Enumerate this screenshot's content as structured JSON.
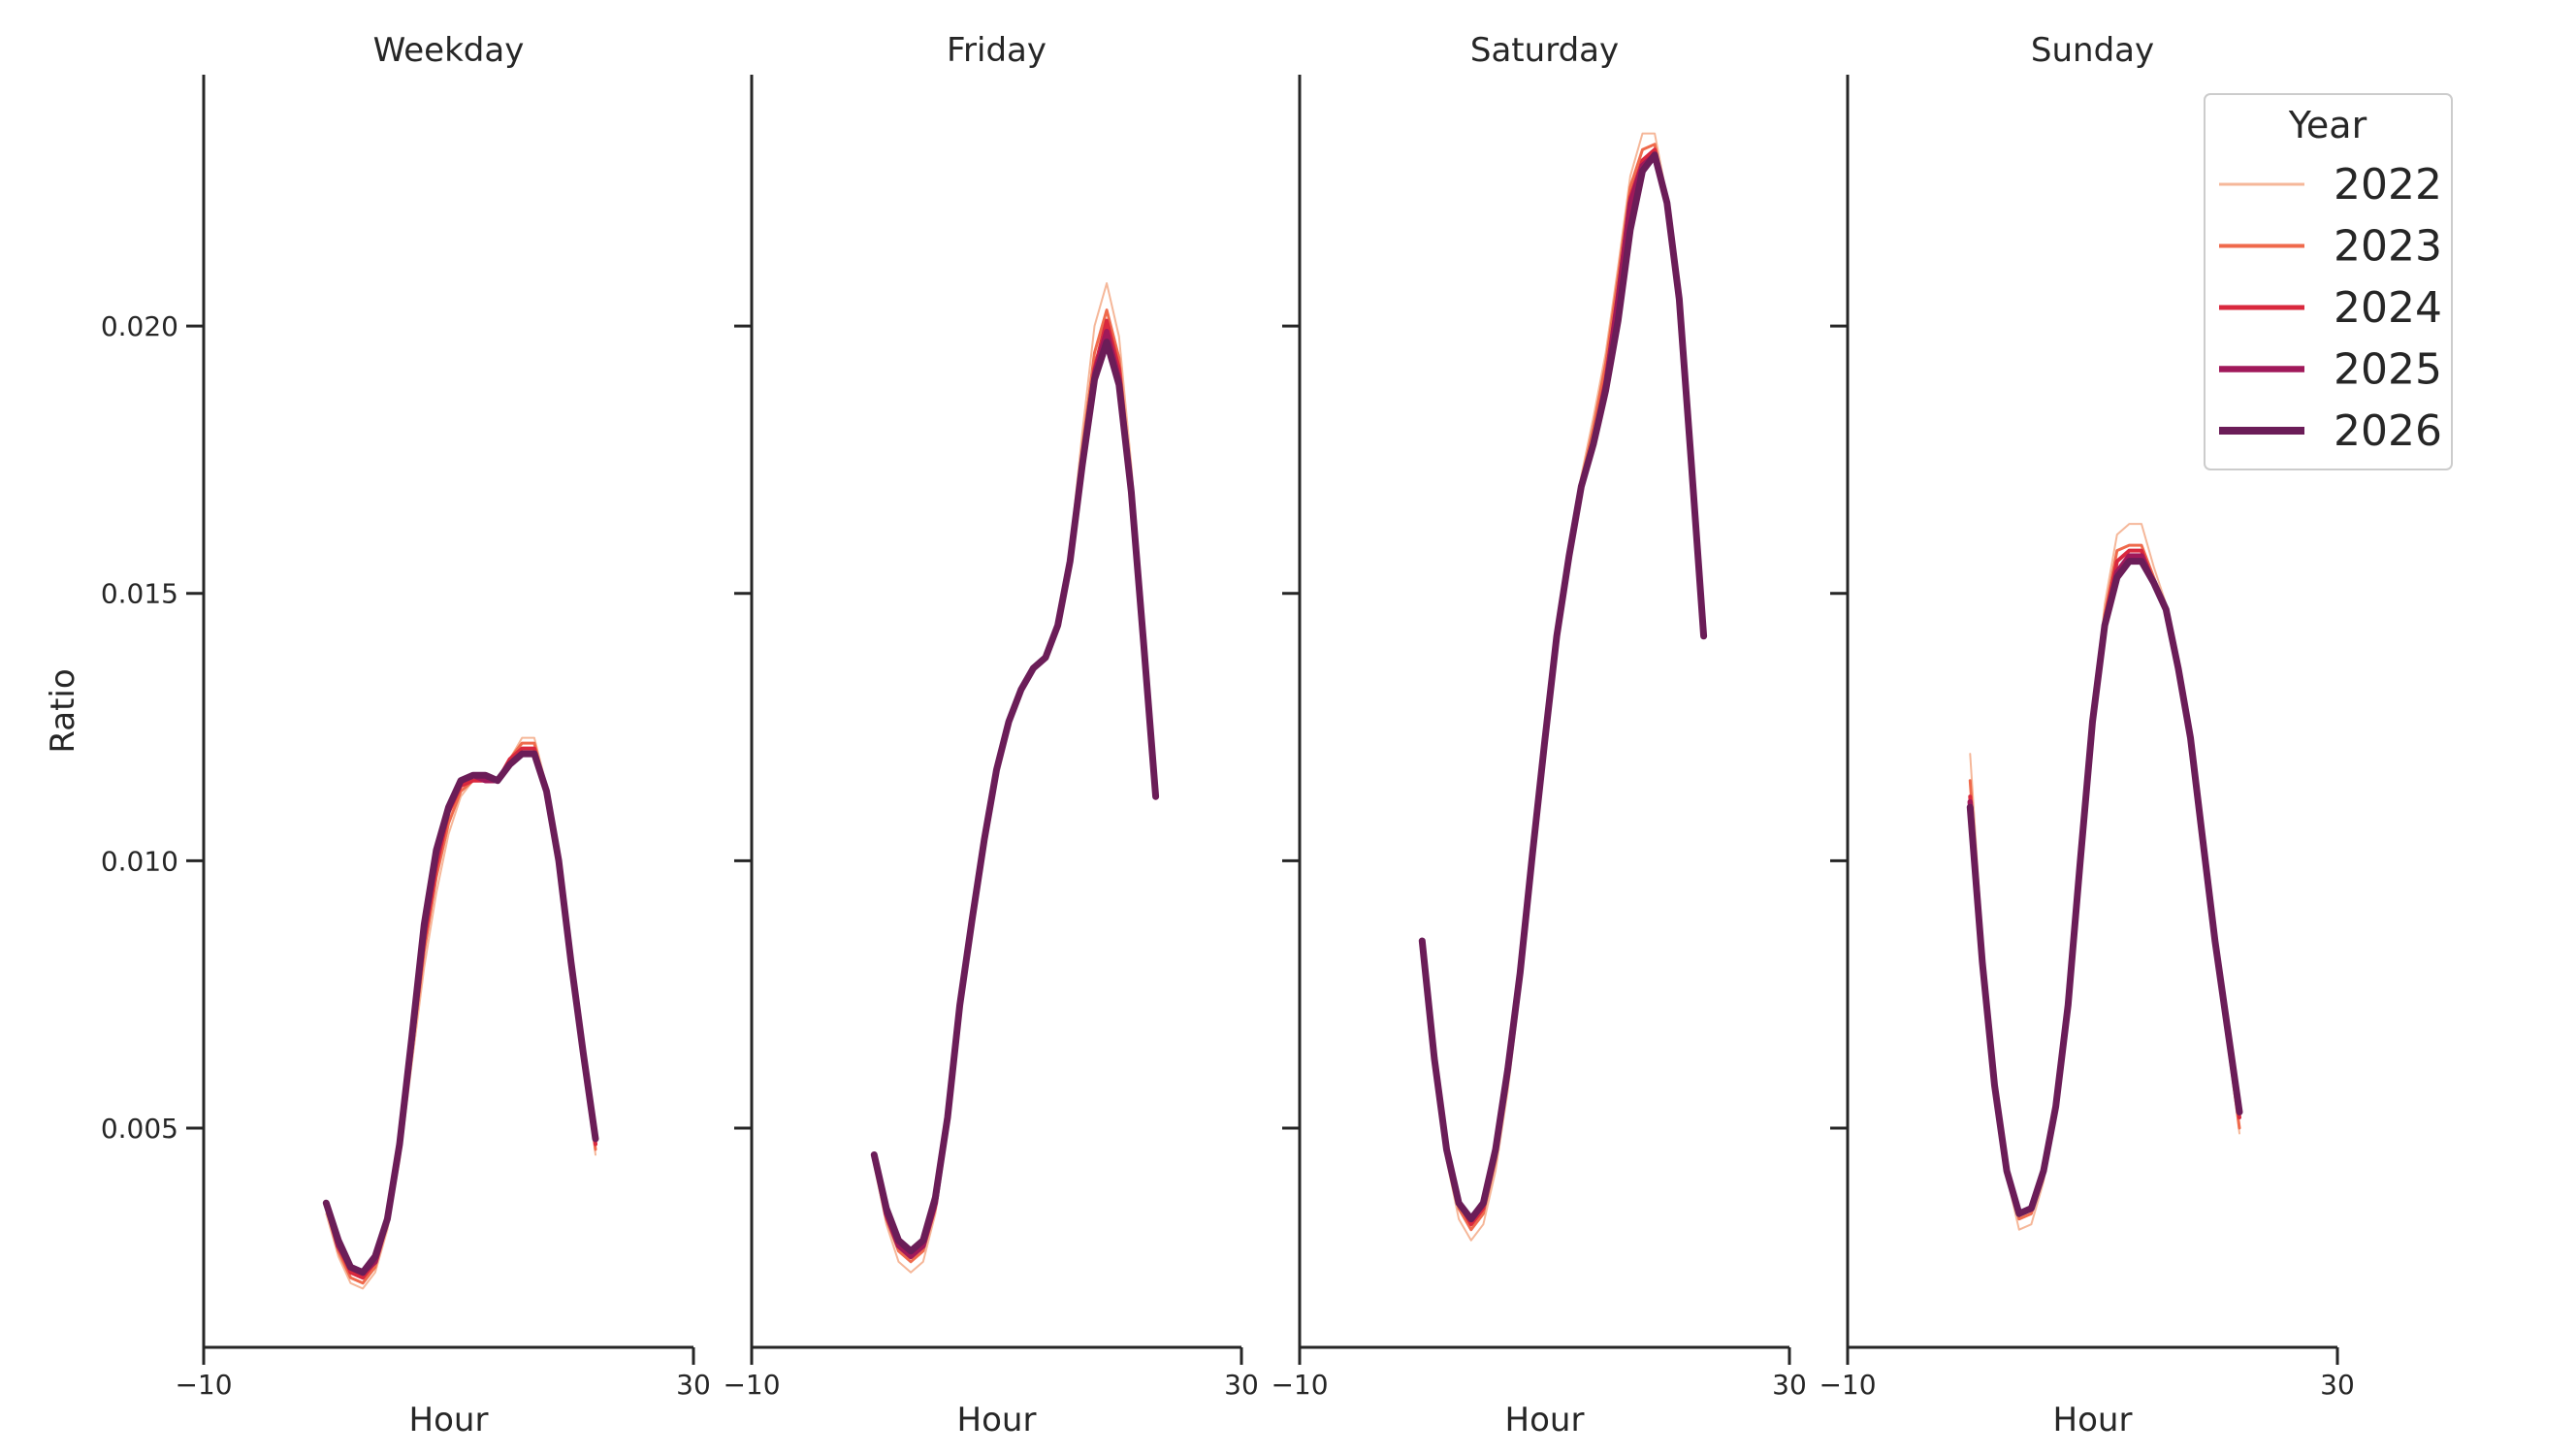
{
  "chart_data": {
    "type": "line",
    "ylabel": "Ratio",
    "legend": {
      "title": "Year",
      "position": "top-right"
    },
    "series_styles": [
      {
        "name": "2022",
        "color": "#f5b799"
      },
      {
        "name": "2023",
        "color": "#ef6a4c"
      },
      {
        "name": "2024",
        "color": "#d9283e"
      },
      {
        "name": "2025",
        "color": "#a0195a"
      },
      {
        "name": "2026",
        "color": "#6b1d58"
      }
    ],
    "xlim": [
      -10,
      30
    ],
    "ylim": [
      0.0009,
      0.0247
    ],
    "xticks": [
      -10,
      30
    ],
    "xtick_labels": [
      "−10",
      "30"
    ],
    "yticks": [
      0.005,
      0.01,
      0.015,
      0.02
    ],
    "ytick_labels": [
      "0.005",
      "0.010",
      "0.015",
      "0.020"
    ],
    "grid": false,
    "panels": [
      {
        "title": "Weekday",
        "xlabel": "Hour",
        "x": [
          0,
          1,
          2,
          3,
          4,
          5,
          6,
          7,
          8,
          9,
          10,
          11,
          12,
          13,
          14,
          15,
          16,
          17,
          18,
          19,
          20,
          21,
          22,
          23
        ],
        "series": [
          {
            "name": "2022",
            "values": [
              0.0034,
              0.0026,
              0.0021,
              0.002,
              0.0023,
              0.0031,
              0.0044,
              0.0062,
              0.008,
              0.0094,
              0.0105,
              0.0112,
              0.0115,
              0.0115,
              0.0115,
              0.0119,
              0.0123,
              0.0123,
              0.0114,
              0.01,
              0.0081,
              0.0063,
              0.0045,
              null
            ]
          },
          {
            "name": "2023",
            "values": [
              0.0035,
              0.0027,
              0.0022,
              0.0021,
              0.0024,
              0.0032,
              0.0045,
              0.0064,
              0.0083,
              0.0097,
              0.0107,
              0.0113,
              0.0115,
              0.0115,
              0.0115,
              0.0119,
              0.0122,
              0.0122,
              0.0113,
              0.01,
              0.0081,
              0.0064,
              0.0046,
              null
            ]
          },
          {
            "name": "2024",
            "values": [
              0.0036,
              0.0028,
              0.0023,
              0.0022,
              0.0025,
              0.0033,
              0.0046,
              0.0065,
              0.0085,
              0.0099,
              0.0109,
              0.0114,
              0.0115,
              0.0115,
              0.0115,
              0.0119,
              0.0121,
              0.0121,
              0.0113,
              0.01,
              0.0081,
              0.0064,
              0.0047,
              null
            ]
          },
          {
            "name": "2025",
            "values": [
              0.0036,
              0.0028,
              0.0024,
              0.0023,
              0.0025,
              0.0033,
              0.0047,
              0.0066,
              0.0087,
              0.0101,
              0.011,
              0.0115,
              0.0116,
              0.0115,
              0.0115,
              0.0118,
              0.012,
              0.012,
              0.0113,
              0.01,
              0.0081,
              0.0064,
              0.0048,
              null
            ]
          },
          {
            "name": "2026",
            "values": [
              0.0036,
              0.0029,
              0.0024,
              0.0023,
              0.0026,
              0.0033,
              0.0047,
              0.0067,
              0.0088,
              0.0102,
              0.011,
              0.0115,
              0.0116,
              0.0116,
              0.0115,
              0.0118,
              0.012,
              0.012,
              0.0113,
              0.01,
              0.0081,
              0.0064,
              0.0048,
              null
            ]
          }
        ]
      },
      {
        "title": "Friday",
        "xlabel": "Hour",
        "x": [
          0,
          1,
          2,
          3,
          4,
          5,
          6,
          7,
          8,
          9,
          10,
          11,
          12,
          13,
          14,
          15,
          16,
          17,
          18,
          19,
          20,
          21,
          22,
          23
        ],
        "series": [
          {
            "name": "2022",
            "values": [
              0.0043,
              0.0032,
              0.0025,
              0.0023,
              0.0025,
              0.0034,
              0.005,
              0.0072,
              0.0088,
              0.0103,
              0.0116,
              0.0126,
              0.0132,
              0.0136,
              0.0138,
              0.0144,
              0.0158,
              0.018,
              0.02,
              0.0208,
              0.0198,
              0.0174,
              0.0145,
              0.0113
            ]
          },
          {
            "name": "2023",
            "values": [
              0.0044,
              0.0033,
              0.0027,
              0.0025,
              0.0027,
              0.0035,
              0.0051,
              0.0072,
              0.0088,
              0.0103,
              0.0116,
              0.0126,
              0.0132,
              0.0136,
              0.0138,
              0.0144,
              0.0157,
              0.0177,
              0.0195,
              0.0203,
              0.0194,
              0.0171,
              0.0143,
              0.0112
            ]
          },
          {
            "name": "2024",
            "values": [
              0.0045,
              0.0034,
              0.0028,
              0.0026,
              0.0028,
              0.0036,
              0.0052,
              0.0073,
              0.0089,
              0.0104,
              0.0117,
              0.0126,
              0.0132,
              0.0136,
              0.0138,
              0.0144,
              0.0156,
              0.0175,
              0.0192,
              0.0201,
              0.0192,
              0.017,
              0.0142,
              0.0112
            ]
          },
          {
            "name": "2025",
            "values": [
              0.0045,
              0.0034,
              0.0028,
              0.0026,
              0.0028,
              0.0036,
              0.0052,
              0.0073,
              0.0089,
              0.0104,
              0.0117,
              0.0126,
              0.0132,
              0.0136,
              0.0138,
              0.0144,
              0.0156,
              0.0174,
              0.0191,
              0.0199,
              0.019,
              0.0169,
              0.0141,
              0.0112
            ]
          },
          {
            "name": "2026",
            "values": [
              0.0045,
              0.0035,
              0.0029,
              0.0027,
              0.0029,
              0.0037,
              0.0052,
              0.0073,
              0.0089,
              0.0104,
              0.0117,
              0.0126,
              0.0132,
              0.0136,
              0.0138,
              0.0144,
              0.0156,
              0.0174,
              0.019,
              0.0197,
              0.0189,
              0.0169,
              0.0141,
              0.0112
            ]
          }
        ]
      },
      {
        "title": "Saturday",
        "xlabel": "Hour",
        "x": [
          0,
          1,
          2,
          3,
          4,
          5,
          6,
          7,
          8,
          9,
          10,
          11,
          12,
          13,
          14,
          15,
          16,
          17,
          18,
          19,
          20,
          21,
          22,
          23
        ],
        "series": [
          {
            "name": "2022",
            "values": [
              0.0085,
              0.0061,
              0.0044,
              0.0033,
              0.0029,
              0.0032,
              0.0042,
              0.0057,
              0.0076,
              0.0099,
              0.0122,
              0.0142,
              0.0158,
              0.0172,
              0.0183,
              0.0195,
              0.0211,
              0.0228,
              0.0236,
              0.0236,
              0.0224,
              0.0206,
              0.0175,
              0.0142
            ]
          },
          {
            "name": "2023",
            "values": [
              0.0085,
              0.0062,
              0.0045,
              0.0035,
              0.0031,
              0.0034,
              0.0044,
              0.0059,
              0.0078,
              0.01,
              0.0122,
              0.0142,
              0.0158,
              0.0171,
              0.0181,
              0.0193,
              0.0209,
              0.0226,
              0.0233,
              0.0234,
              0.0223,
              0.0205,
              0.0174,
              0.0142
            ]
          },
          {
            "name": "2024",
            "values": [
              0.0085,
              0.0063,
              0.0046,
              0.0036,
              0.0032,
              0.0035,
              0.0045,
              0.006,
              0.0079,
              0.0101,
              0.0122,
              0.0142,
              0.0157,
              0.017,
              0.0179,
              0.019,
              0.0206,
              0.0224,
              0.0231,
              0.0233,
              0.0223,
              0.0205,
              0.0174,
              0.0142
            ]
          },
          {
            "name": "2025",
            "values": [
              0.0085,
              0.0063,
              0.0046,
              0.0036,
              0.0033,
              0.0036,
              0.0046,
              0.0061,
              0.0079,
              0.0101,
              0.0122,
              0.0142,
              0.0157,
              0.017,
              0.0178,
              0.0189,
              0.0205,
              0.0223,
              0.023,
              0.0232,
              0.0223,
              0.0205,
              0.0174,
              0.0142
            ]
          },
          {
            "name": "2026",
            "values": [
              0.0085,
              0.0063,
              0.0046,
              0.0036,
              0.0033,
              0.0036,
              0.0046,
              0.0061,
              0.0079,
              0.0101,
              0.0122,
              0.0142,
              0.0157,
              0.017,
              0.0178,
              0.0188,
              0.0201,
              0.0218,
              0.0229,
              0.0232,
              0.0223,
              0.0205,
              0.0174,
              0.0142
            ]
          }
        ]
      },
      {
        "title": "Sunday",
        "xlabel": "Hour",
        "x": [
          0,
          1,
          2,
          3,
          4,
          5,
          6,
          7,
          8,
          9,
          10,
          11,
          12,
          13,
          14,
          15,
          16,
          17,
          18,
          19,
          20,
          21,
          22,
          23
        ],
        "series": [
          {
            "name": "2022",
            "values": [
              0.012,
              0.0085,
              0.0058,
              0.0041,
              0.0031,
              0.0032,
              0.004,
              0.0053,
              0.0073,
              0.01,
              0.0126,
              0.0148,
              0.0161,
              0.0163,
              0.0163,
              0.0155,
              0.0148,
              0.0137,
              0.0124,
              0.0104,
              0.0085,
              0.0067,
              0.0049,
              null
            ]
          },
          {
            "name": "2023",
            "values": [
              0.0115,
              0.0083,
              0.0058,
              0.0042,
              0.0033,
              0.0034,
              0.0041,
              0.0054,
              0.0073,
              0.01,
              0.0126,
              0.0146,
              0.0158,
              0.0159,
              0.0159,
              0.0153,
              0.0147,
              0.0136,
              0.0124,
              0.0104,
              0.0085,
              0.0067,
              0.005,
              null
            ]
          },
          {
            "name": "2024",
            "values": [
              0.0112,
              0.0082,
              0.0058,
              0.0042,
              0.0034,
              0.0035,
              0.0042,
              0.0054,
              0.0073,
              0.01,
              0.0126,
              0.0145,
              0.0156,
              0.0158,
              0.0158,
              0.0152,
              0.0147,
              0.0136,
              0.0124,
              0.0104,
              0.0085,
              0.0068,
              0.0052,
              null
            ]
          },
          {
            "name": "2025",
            "values": [
              0.0111,
              0.0081,
              0.0058,
              0.0042,
              0.0034,
              0.0035,
              0.0042,
              0.0054,
              0.0073,
              0.01,
              0.0126,
              0.0144,
              0.0154,
              0.0157,
              0.0157,
              0.0152,
              0.0147,
              0.0136,
              0.0123,
              0.0104,
              0.0085,
              0.0069,
              0.0053,
              null
            ]
          },
          {
            "name": "2026",
            "values": [
              0.011,
              0.0081,
              0.0058,
              0.0042,
              0.0034,
              0.0035,
              0.0042,
              0.0054,
              0.0073,
              0.01,
              0.0126,
              0.0144,
              0.0153,
              0.0156,
              0.0156,
              0.0152,
              0.0147,
              0.0136,
              0.0123,
              0.0104,
              0.0085,
              0.0069,
              0.0053,
              null
            ]
          }
        ]
      }
    ]
  }
}
